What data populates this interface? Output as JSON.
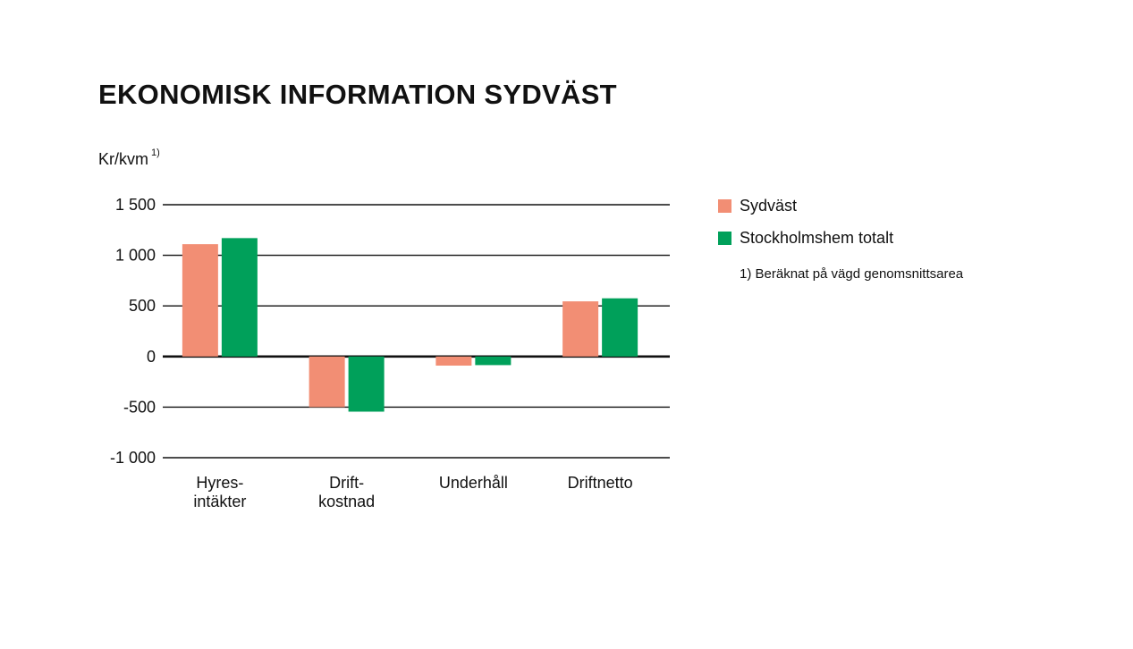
{
  "colors": {
    "sydvast": "#f28e74",
    "totalt": "#00a05a"
  },
  "legend": {
    "items": [
      {
        "label": "Sydväst",
        "color": "#f28e74"
      },
      {
        "label": "Stockholmshem totalt",
        "color": "#00a05a"
      }
    ],
    "footnote": "1) Beräknat på vägd genomsnittsarea"
  },
  "chart_data": {
    "type": "bar",
    "title": "EKONOMISK INFORMATION SYDVÄST",
    "ylabel": "Kr/kvm",
    "ylabel_sup": "1)",
    "xlabel": "",
    "ylim": [
      -1000,
      1500
    ],
    "yticks": [
      1500,
      1000,
      500,
      0,
      -500,
      -1000
    ],
    "ytick_labels": [
      "1 500",
      "1 000",
      "500",
      "0",
      "-500",
      "-1 000"
    ],
    "categories": [
      "Hyres-\nintäkter",
      "Drift-\nkostnad",
      "Underhåll",
      "Driftnetto"
    ],
    "series": [
      {
        "name": "Sydväst",
        "color": "#f28e74",
        "values": [
          1110,
          -500,
          -90,
          545
        ]
      },
      {
        "name": "Stockholmshem totalt",
        "color": "#00a05a",
        "values": [
          1170,
          -545,
          -85,
          575
        ]
      }
    ],
    "grid": true,
    "legend_position": "right"
  }
}
